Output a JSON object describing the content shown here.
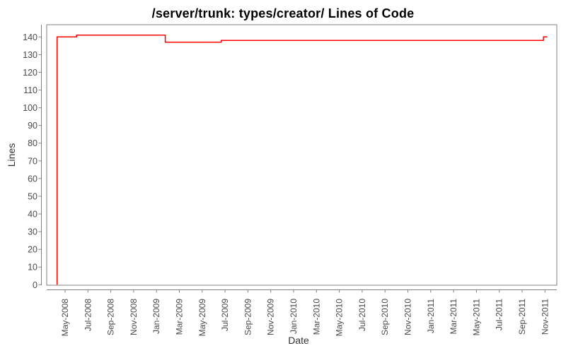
{
  "chart_data": {
    "type": "line",
    "subtype": "step-after",
    "title": "/server/trunk: types/creator/ Lines of Code",
    "xlabel": "Date",
    "ylabel": "Lines",
    "legend": "none",
    "grid": false,
    "line_color": "#ff0000",
    "frame_color": "#808080",
    "ylim": [
      0,
      147
    ],
    "yticks": [
      0,
      10,
      20,
      30,
      40,
      50,
      60,
      70,
      80,
      90,
      100,
      110,
      120,
      130,
      140
    ],
    "x_tick_labels": [
      "May-2008",
      "Jul-2008",
      "Sep-2008",
      "Nov-2008",
      "Jan-2009",
      "Mar-2009",
      "May-2009",
      "Jul-2009",
      "Sep-2009",
      "Nov-2009",
      "Jan-2010",
      "Mar-2010",
      "May-2010",
      "Jul-2010",
      "Sep-2010",
      "Nov-2010",
      "Jan-2011",
      "Mar-2011",
      "May-2011",
      "Jul-2011",
      "Sep-2011",
      "Nov-2011"
    ],
    "points": [
      {
        "date": "2008-04-10",
        "value": 0
      },
      {
        "date": "2008-04-10",
        "value": 140
      },
      {
        "date": "2008-06-01",
        "value": 141
      },
      {
        "date": "2009-01-24",
        "value": 137
      },
      {
        "date": "2009-06-21",
        "value": 138
      },
      {
        "date": "2011-10-27",
        "value": 140
      },
      {
        "date": "2011-11-07",
        "value": 140
      }
    ]
  }
}
